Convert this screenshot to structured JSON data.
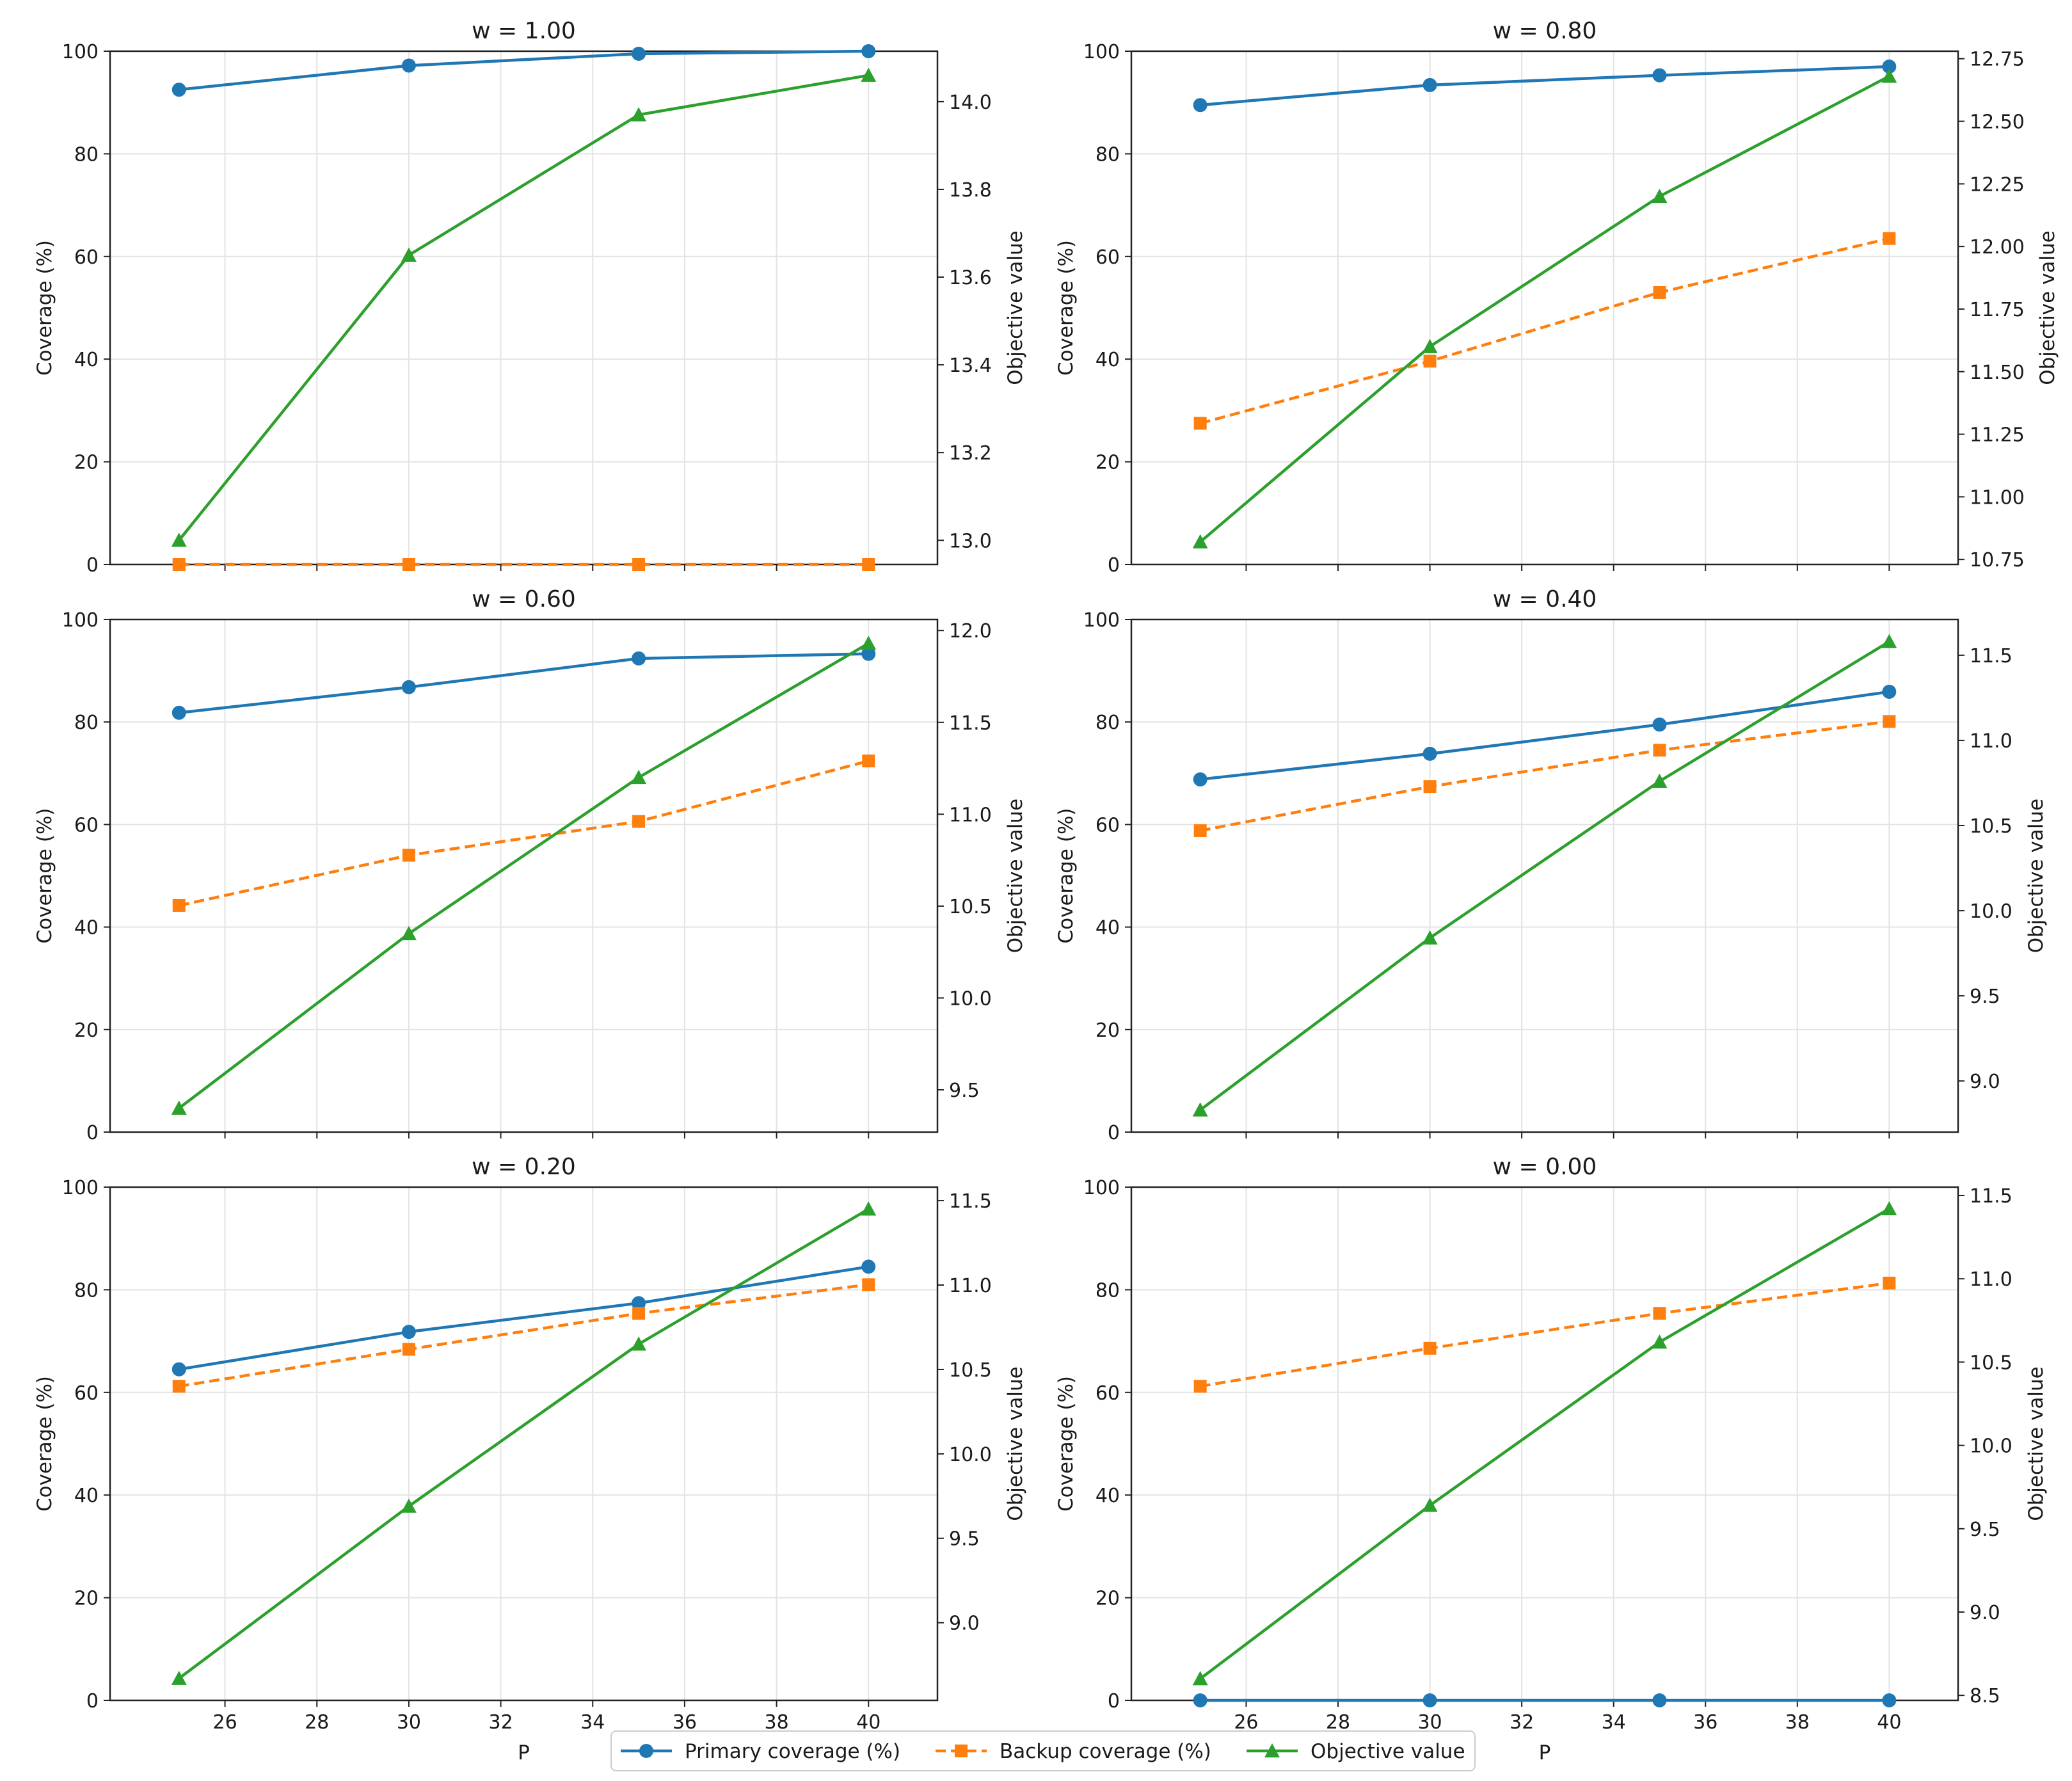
{
  "chart_data": {
    "type": "line",
    "layout": "3x2 grid of dual-axis line charts",
    "x_label": "P",
    "x": [
      25,
      30,
      35,
      40
    ],
    "x_ticks": [
      26,
      28,
      30,
      32,
      34,
      36,
      38,
      40
    ],
    "xlim": [
      23.5,
      41.5
    ],
    "left_ylabel": "Coverage (%)",
    "right_ylabel": "Objective value",
    "left_ylim": [
      0,
      100
    ],
    "left_ticks": [
      0,
      20,
      40,
      60,
      80,
      100
    ],
    "legend_position": "bottom-center",
    "series_meta": [
      {
        "key": "primary",
        "name": "Primary coverage (%)",
        "color": "#1f77b4",
        "marker": "circle",
        "dash": "solid",
        "axis": "left"
      },
      {
        "key": "backup",
        "name": "Backup coverage (%)",
        "color": "#ff7f0e",
        "marker": "square",
        "dash": "dashed",
        "axis": "left"
      },
      {
        "key": "objective",
        "name": "Objective value",
        "color": "#2ca02c",
        "marker": "triangle",
        "dash": "solid",
        "axis": "right"
      }
    ],
    "panels": [
      {
        "title": "w = 1.00",
        "primary": [
          92.5,
          97.2,
          99.5,
          100.0
        ],
        "backup": [
          0.0,
          0.0,
          0.0,
          0.0
        ],
        "objective": [
          13.0,
          13.65,
          13.97,
          14.06
        ],
        "right_ylim": [
          12.945,
          14.115
        ],
        "right_ticks": [
          13.0,
          13.2,
          13.4,
          13.6,
          13.8,
          14.0
        ],
        "right_tick_labels": [
          "13.0",
          "13.2",
          "13.4",
          "13.6",
          "13.8",
          "14.0"
        ]
      },
      {
        "title": "w = 0.80",
        "primary": [
          89.5,
          93.4,
          95.3,
          97.0
        ],
        "backup": [
          27.5,
          39.6,
          53.0,
          63.5
        ],
        "objective": [
          10.82,
          11.6,
          12.2,
          12.68
        ],
        "right_ylim": [
          10.73,
          12.78
        ],
        "right_ticks": [
          10.75,
          11.0,
          11.25,
          11.5,
          11.75,
          12.0,
          12.25,
          12.5,
          12.75
        ],
        "right_tick_labels": [
          "10.75",
          "11.00",
          "11.25",
          "11.50",
          "11.75",
          "12.00",
          "12.25",
          "12.50",
          "12.75"
        ]
      },
      {
        "title": "w = 0.60",
        "primary": [
          81.8,
          86.8,
          92.4,
          93.3
        ],
        "backup": [
          44.2,
          54.0,
          60.6,
          72.4
        ],
        "objective": [
          9.4,
          10.35,
          11.2,
          11.93
        ],
        "right_ylim": [
          9.27,
          12.06
        ],
        "right_ticks": [
          9.5,
          10.0,
          10.5,
          11.0,
          11.5,
          12.0
        ],
        "right_tick_labels": [
          "9.5",
          "10.0",
          "10.5",
          "11.0",
          "11.5",
          "12.0"
        ]
      },
      {
        "title": "w = 0.40",
        "primary": [
          68.8,
          73.8,
          79.5,
          85.9
        ],
        "backup": [
          58.8,
          67.4,
          74.5,
          80.1
        ],
        "objective": [
          8.83,
          9.84,
          10.76,
          11.58
        ],
        "right_ylim": [
          8.7,
          11.71
        ],
        "right_ticks": [
          9.0,
          9.5,
          10.0,
          10.5,
          11.0,
          11.5
        ],
        "right_tick_labels": [
          "9.0",
          "9.5",
          "10.0",
          "10.5",
          "11.0",
          "11.5"
        ]
      },
      {
        "title": "w = 0.20",
        "primary": [
          64.5,
          71.8,
          77.4,
          84.5
        ],
        "backup": [
          61.2,
          68.4,
          75.4,
          81.0
        ],
        "objective": [
          8.67,
          9.69,
          10.65,
          11.45
        ],
        "right_ylim": [
          8.54,
          11.58
        ],
        "right_ticks": [
          9.0,
          9.5,
          10.0,
          10.5,
          11.0,
          11.5
        ],
        "right_tick_labels": [
          "9.0",
          "9.5",
          "10.0",
          "10.5",
          "11.0",
          "11.5"
        ]
      },
      {
        "title": "w = 0.00",
        "primary": [
          0.0,
          0.0,
          0.0,
          0.0
        ],
        "backup": [
          61.2,
          68.6,
          75.4,
          81.3
        ],
        "objective": [
          8.6,
          9.64,
          10.62,
          11.42
        ],
        "right_ylim": [
          8.47,
          11.55
        ],
        "right_ticks": [
          8.5,
          9.0,
          9.5,
          10.0,
          10.5,
          11.0,
          11.5
        ],
        "right_tick_labels": [
          "8.5",
          "9.0",
          "9.5",
          "10.0",
          "10.5",
          "11.0",
          "11.5"
        ]
      }
    ]
  }
}
